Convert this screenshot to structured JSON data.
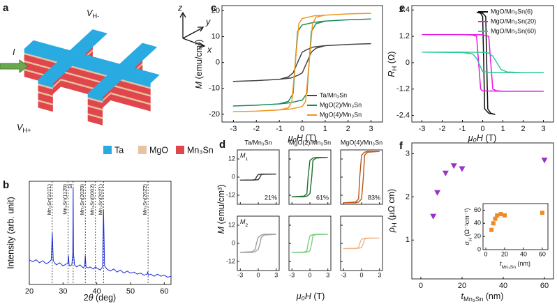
{
  "schematic": {
    "panel_label": "a",
    "current_label": [
      {
        "t": "I",
        "f": "i"
      }
    ],
    "voltage_labels": [
      [
        {
          "t": "V",
          "f": "i"
        },
        {
          "t": "H-",
          "f": "s"
        }
      ],
      [
        {
          "t": "V",
          "f": "i"
        },
        {
          "t": "H+",
          "f": "s"
        }
      ]
    ],
    "axis_labels": [
      "z",
      "y",
      "x"
    ],
    "legend": [
      {
        "name": "Ta",
        "color": "#29abe2"
      },
      {
        "name": "MgO",
        "color": "#e8c3a0"
      },
      {
        "name": "Mn₃Sn",
        "color": "#e0474c"
      }
    ]
  },
  "chart_data": [
    {
      "type": "line",
      "panel_label": "b",
      "xlabel": [
        "2",
        {
          "t": "θ",
          "f": "i"
        },
        " (deg)"
      ],
      "ylabel": "Intensity (arb. unit)",
      "color": "#1a2bd8",
      "x": [
        20,
        21,
        22,
        23,
        24,
        25,
        26,
        26.5,
        26.8,
        27.1,
        27.5,
        28,
        29,
        30,
        31,
        31.4,
        31.6,
        31.8,
        32,
        32.6,
        32.9,
        33.0,
        33.1,
        33.4,
        34,
        35,
        36,
        36.4,
        36.6,
        36.8,
        37.5,
        38,
        39,
        39.6,
        40,
        41,
        41.7,
        42.0,
        42.3,
        43,
        44,
        45,
        46,
        47,
        48,
        49,
        50,
        51,
        52,
        53,
        54,
        54.9,
        55.1,
        55.3,
        56,
        57,
        58,
        59,
        60,
        61,
        62
      ],
      "values": [
        24,
        22,
        24,
        21,
        23,
        20,
        22,
        24,
        50,
        23,
        21,
        19,
        21,
        18,
        20,
        20,
        28,
        19,
        18,
        19,
        30,
        94,
        30,
        19,
        17,
        19,
        16,
        18,
        28,
        17,
        16,
        17,
        15,
        17,
        16,
        14,
        17,
        72,
        18,
        15,
        13,
        15,
        12,
        14,
        11,
        13,
        11,
        12,
        10,
        11,
        9,
        10,
        12,
        9,
        10,
        8,
        10,
        8,
        9,
        7,
        8
      ],
      "xlim": [
        20,
        62
      ],
      "ylim": [
        0,
        100
      ],
      "xticks": [
        20,
        30,
        40,
        50,
        60
      ],
      "reference_lines": [
        {
          "x": 26.8,
          "label": "Mn₃Sn(101̄1)"
        },
        {
          "x": 31.5,
          "label": "Mn₃Sn(112̄0)"
        },
        {
          "x": 33.0,
          "label": "Si"
        },
        {
          "x": 36.6,
          "label": "Mn₃Sn(202̄0)"
        },
        {
          "x": 39.6,
          "label": "Mn₃Sn(0002)"
        },
        {
          "x": 42.0,
          "label": "Mn₃Sn(202̄1)"
        },
        {
          "x": 55.2,
          "label": "Mn₃Sn(202̄2)"
        }
      ]
    },
    {
      "type": "line",
      "panel_label": "c",
      "xlabel": [
        {
          "t": "μ₀H",
          "f": "i"
        },
        " (T)"
      ],
      "ylabel": [
        {
          "t": "M",
          "f": "i"
        },
        " (emu/cm³)"
      ],
      "xlim": [
        -3.5,
        3.5
      ],
      "ylim": [
        -23,
        22
      ],
      "xticks": [
        -3,
        -2,
        -1,
        0,
        1,
        2,
        3
      ],
      "yticks": [
        20,
        10,
        0,
        -10,
        -20
      ],
      "legend": "lower right",
      "series": [
        {
          "name": "Ta/Mn₃Sn",
          "color": "#444444",
          "x": [
            3,
            2,
            1,
            0.5,
            0.2,
            0,
            -0.2,
            -0.4,
            -0.6,
            -1,
            -2,
            -3,
            -2,
            -1,
            -0.5,
            -0.2,
            0,
            0.2,
            0.4,
            0.6,
            1,
            2,
            3
          ],
          "values": [
            7.3,
            7,
            6.5,
            6,
            5,
            4,
            0,
            -4,
            -5.5,
            -6.5,
            -7,
            -7.3,
            -7,
            -6.5,
            -6,
            -5,
            -4,
            0,
            4,
            5.5,
            6.5,
            7,
            7.3
          ]
        },
        {
          "name": "MgO(2)/Mn₃Sn",
          "color": "#1a8a5a",
          "x": [
            3,
            2,
            1,
            0.5,
            0,
            -0.2,
            -0.3,
            -0.4,
            -0.6,
            -1,
            -2,
            -3,
            -2,
            -1,
            -0.5,
            0,
            0.2,
            0.3,
            0.4,
            0.6,
            1,
            2,
            3
          ],
          "values": [
            16.8,
            16.5,
            16,
            15.5,
            14.5,
            12,
            0,
            -12,
            -15,
            -16,
            -16.5,
            -16.8,
            -16.5,
            -16,
            -15.5,
            -14.5,
            -12,
            0,
            12,
            15,
            16,
            16.5,
            16.8
          ]
        },
        {
          "name": "MgO(4)/Mn₃Sn",
          "color": "#f0961e",
          "x": [
            3,
            2,
            1,
            0.5,
            0,
            -0.15,
            -0.3,
            -0.45,
            -0.6,
            -1,
            -2,
            -3,
            -2,
            -1,
            -0.5,
            0,
            0.15,
            0.3,
            0.45,
            0.6,
            1,
            2,
            3
          ],
          "values": [
            19,
            18.8,
            18.3,
            18,
            17,
            15,
            0,
            -15,
            -17.5,
            -18.3,
            -18.8,
            -19,
            -18.8,
            -18.3,
            -18,
            -17,
            -15,
            0,
            15,
            17.5,
            18.3,
            18.8,
            19
          ]
        }
      ]
    },
    {
      "type": "hysteresis-grid",
      "panel_label": "d",
      "xlabel": [
        {
          "t": "μ₀H",
          "f": "i"
        },
        " (T)"
      ],
      "ylabel": [
        {
          "t": "M",
          "f": "i"
        },
        " (emu/cm³)"
      ],
      "column_titles": [
        "Ta/Mn₃Sn",
        "MgO(2)/Mn₃Sn",
        "MgO(4)/Mn₃Sn"
      ],
      "row_labels": [
        [
          {
            "t": "M",
            "f": "i"
          },
          {
            "t": "1",
            "f": "s"
          }
        ],
        [
          {
            "t": "M",
            "f": "i"
          },
          {
            "t": "2",
            "f": "s"
          }
        ]
      ],
      "xlim": [
        -3.5,
        3.5
      ],
      "ylim": [
        -18,
        18
      ],
      "xticks": [
        -3,
        0,
        3
      ],
      "yticks": [
        12,
        0,
        -12
      ],
      "x": [
        3,
        1,
        0.5,
        0,
        -0.3,
        -0.5,
        -1,
        -3,
        -3,
        -1,
        -0.5,
        0,
        0.3,
        0.5,
        1,
        3
      ],
      "rows": [
        [
          {
            "color": "#333333",
            "annotation": "21%",
            "values": [
              2,
              2,
              1.9,
              1.7,
              0,
              -1.7,
              -1.9,
              -2,
              -2,
              -2,
              -1.9,
              -1.7,
              0,
              1.7,
              1.9,
              2
            ]
          },
          {
            "color": "#1f6e2e",
            "annotation": "61%",
            "values": [
              13,
              13,
              12.6,
              11,
              0,
              -11,
              -12.6,
              -13,
              -13,
              -13,
              -12.6,
              -11,
              0,
              11,
              12.6,
              13
            ]
          },
          {
            "color": "#b8561a",
            "annotation": "83%",
            "values": [
              17,
              17,
              16.5,
              14.5,
              0,
              -14.5,
              -16.5,
              -17,
              -17,
              -17,
              -16.5,
              -14.5,
              0,
              14.5,
              16.5,
              17
            ]
          }
        ],
        [
          {
            "color": "#a0a0a0",
            "values": [
              6,
              6,
              5.5,
              4,
              0,
              -4,
              -5.5,
              -6,
              -6,
              -6,
              -5.5,
              -4,
              0,
              4,
              5.5,
              6
            ]
          },
          {
            "color": "#7fcf7f",
            "values": [
              6,
              6,
              5.8,
              5,
              0,
              -5,
              -5.8,
              -6,
              -6,
              -6,
              -5.8,
              -5,
              0,
              5,
              5.8,
              6
            ]
          },
          {
            "color": "#f2b48a",
            "values": [
              3.5,
              3.5,
              3.3,
              2.8,
              0,
              -2.8,
              -3.3,
              -3.5,
              -3.5,
              -3.5,
              -3.3,
              -2.8,
              0,
              2.8,
              3.3,
              3.5
            ]
          }
        ]
      ]
    },
    {
      "type": "line",
      "panel_label": "e",
      "xlabel": [
        {
          "t": "μ₀H",
          "f": "i"
        },
        " (T)"
      ],
      "ylabel": [
        {
          "t": "R",
          "f": "i"
        },
        {
          "t": "H",
          "f": "s"
        },
        " (Ω)"
      ],
      "xlim": [
        -3.5,
        3.5
      ],
      "ylim": [
        -2.7,
        2.6
      ],
      "xticks": [
        -3,
        -2,
        -1,
        0,
        1,
        2,
        3
      ],
      "yticks": [
        2.4,
        1.2,
        0,
        -1.2,
        -2.4
      ],
      "legend": "upper right",
      "series": [
        {
          "name": "MgO/Mn₃Sn(6)",
          "color": "#111111",
          "x": [
            -0.3,
            0,
            0.15,
            0.2,
            0.25,
            0.4,
            0.6,
            0.6,
            0.3,
            0.1,
            0.05,
            0,
            -0.1,
            -0.3
          ],
          "values": [
            2.3,
            2.25,
            2.1,
            0,
            -2.1,
            -2.3,
            -2.35,
            -2.35,
            -2.3,
            -2.1,
            0,
            2.1,
            2.25,
            2.3
          ]
        },
        {
          "name": "MgO/Mn₃Sn(20)",
          "color": "#e619e6",
          "x": [
            -3,
            -1,
            0,
            0.3,
            0.4,
            0.5,
            0.7,
            1,
            3,
            3,
            1,
            0,
            -0.1,
            -0.2,
            -0.3,
            -0.5,
            -1,
            -3
          ],
          "values": [
            1.28,
            1.28,
            1.27,
            1.2,
            0,
            -1.2,
            -1.28,
            -1.3,
            -1.3,
            -1.3,
            -1.3,
            -1.28,
            -1.2,
            0,
            1.2,
            1.26,
            1.28,
            1.28
          ]
        },
        {
          "name": "MgO/Mn₃Sn(60)",
          "color": "#2ec99a",
          "x": [
            -3,
            -1,
            0,
            0.3,
            0.5,
            0.7,
            0.9,
            1.2,
            2,
            3,
            3,
            1,
            0.3,
            0,
            -0.1,
            -0.3,
            -0.5,
            -1,
            -3
          ],
          "values": [
            0.48,
            0.48,
            0.47,
            0.44,
            0.3,
            0,
            -0.3,
            -0.42,
            -0.45,
            -0.45,
            -0.45,
            -0.45,
            -0.44,
            -0.4,
            -0.2,
            0.2,
            0.4,
            0.46,
            0.48
          ]
        }
      ]
    },
    {
      "type": "scatter",
      "panel_label": "f",
      "xlabel": [
        {
          "t": "t",
          "f": "i"
        },
        {
          "t": "Mn₃Sn",
          "f": "s"
        },
        " (nm)"
      ],
      "ylabel": [
        {
          "t": "ρ",
          "f": "i"
        },
        {
          "t": "H",
          "f": "s"
        },
        " (μΩ cm)"
      ],
      "xlim": [
        -4.4,
        64.4
      ],
      "ylim": [
        0.1,
        3.25
      ],
      "xticks": [
        0,
        20,
        40,
        60
      ],
      "yticks": [
        1,
        2,
        3
      ],
      "color": "#9b30c9",
      "marker": "triangle-down",
      "x": [
        6,
        8,
        12,
        16,
        20,
        60
      ],
      "values": [
        1.55,
        2.1,
        2.55,
        2.72,
        2.65,
        2.85
      ],
      "inset": {
        "type": "scatter",
        "xlabel": [
          {
            "t": "t",
            "f": "i"
          },
          {
            "t": "Mn₃Sn",
            "f": "s"
          },
          " (nm)"
        ],
        "ylabel": [
          {
            "t": "σ",
            "f": "i"
          },
          {
            "t": "H",
            "f": "s"
          },
          " (Ω⁻¹cm⁻¹)"
        ],
        "xlim": [
          -3,
          66
        ],
        "ylim": [
          0,
          70
        ],
        "xticks": [
          0,
          20,
          40,
          60
        ],
        "yticks": [
          0,
          20,
          40,
          60
        ],
        "color": "#f08a24",
        "marker": "square",
        "x": [
          6,
          8,
          10,
          12,
          16,
          20,
          60
        ],
        "values": [
          30,
          40,
          47,
          52,
          54,
          52,
          56
        ]
      }
    }
  ]
}
